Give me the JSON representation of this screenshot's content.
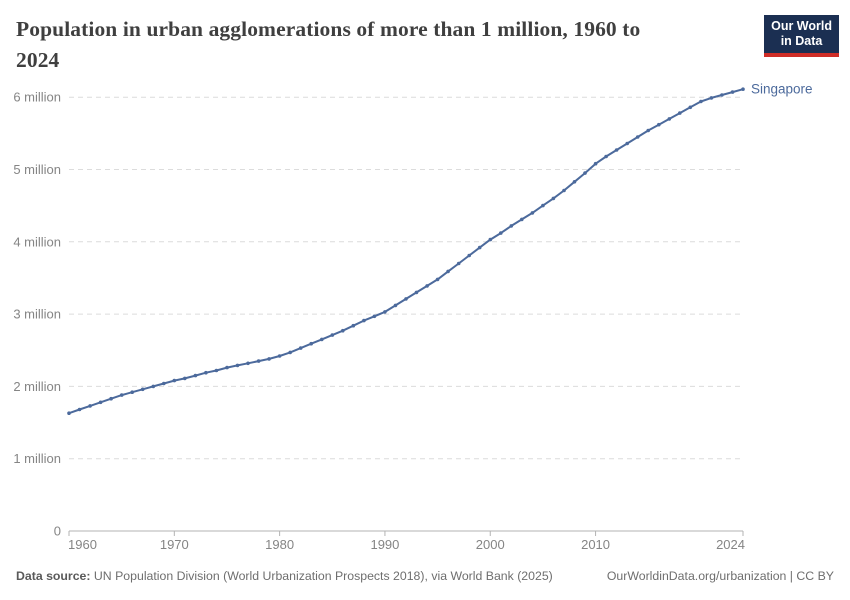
{
  "header": {
    "title_lines": [
      "Population in urban agglomerations of more than 1 million, 1960 to",
      "2024"
    ]
  },
  "logo": {
    "line1": "Our World",
    "line2": "in Data",
    "bg_color": "#1b2f52",
    "accent_color": "#cf2d27"
  },
  "chart_data": {
    "type": "line",
    "title": "Population in urban agglomerations of more than 1 million, 1960 to 2024",
    "xlabel": "",
    "ylabel": "",
    "xlim": [
      1960,
      2024
    ],
    "ylim": [
      0,
      6
    ],
    "grid": "horizontal-dashed",
    "legend_position": "line-end-label",
    "x_ticks": [
      {
        "year": 1960,
        "label": "1960",
        "align": "start"
      },
      {
        "year": 1970,
        "label": "1970",
        "align": "middle"
      },
      {
        "year": 1980,
        "label": "1980",
        "align": "middle"
      },
      {
        "year": 1990,
        "label": "1990",
        "align": "middle"
      },
      {
        "year": 2000,
        "label": "2000",
        "align": "middle"
      },
      {
        "year": 2010,
        "label": "2010",
        "align": "middle"
      },
      {
        "year": 2024,
        "label": "2024",
        "align": "end"
      }
    ],
    "y_ticks": [
      {
        "v": 0,
        "label": "0"
      },
      {
        "v": 1,
        "label": "1 million"
      },
      {
        "v": 2,
        "label": "2 million"
      },
      {
        "v": 3,
        "label": "3 million"
      },
      {
        "v": 4,
        "label": "4 million"
      },
      {
        "v": 5,
        "label": "5 million"
      },
      {
        "v": 6,
        "label": "6 million"
      }
    ],
    "x": [
      1960,
      1961,
      1962,
      1963,
      1964,
      1965,
      1966,
      1967,
      1968,
      1969,
      1970,
      1971,
      1972,
      1973,
      1974,
      1975,
      1976,
      1977,
      1978,
      1979,
      1980,
      1981,
      1982,
      1983,
      1984,
      1985,
      1986,
      1987,
      1988,
      1989,
      1990,
      1991,
      1992,
      1993,
      1994,
      1995,
      1996,
      1997,
      1998,
      1999,
      2000,
      2001,
      2002,
      2003,
      2004,
      2005,
      2006,
      2007,
      2008,
      2009,
      2010,
      2011,
      2012,
      2013,
      2014,
      2015,
      2016,
      2017,
      2018,
      2019,
      2020,
      2021,
      2022,
      2023,
      2024
    ],
    "series": [
      {
        "name": "Singapore",
        "color": "#4c6a9c",
        "unit": "million",
        "values": [
          1.63,
          1.68,
          1.73,
          1.78,
          1.83,
          1.88,
          1.92,
          1.96,
          2.0,
          2.04,
          2.08,
          2.11,
          2.15,
          2.19,
          2.22,
          2.26,
          2.29,
          2.32,
          2.35,
          2.38,
          2.42,
          2.47,
          2.53,
          2.59,
          2.65,
          2.71,
          2.77,
          2.84,
          2.91,
          2.97,
          3.03,
          3.12,
          3.21,
          3.3,
          3.39,
          3.48,
          3.59,
          3.7,
          3.81,
          3.92,
          4.03,
          4.12,
          4.22,
          4.31,
          4.4,
          4.5,
          4.6,
          4.71,
          4.83,
          4.95,
          5.08,
          5.18,
          5.27,
          5.36,
          5.45,
          5.54,
          5.62,
          5.7,
          5.78,
          5.86,
          5.94,
          5.99,
          6.03,
          6.07,
          6.11
        ]
      }
    ]
  },
  "footer": {
    "source_label": "Data source:",
    "source_text": " UN Population Division (World Urbanization Prospects 2018), via World Bank (2025)",
    "right_text": "OurWorldinData.org/urbanization | CC BY"
  },
  "style": {
    "gridline_color": "#dcdcdc",
    "axis_color": "#b3b3b3",
    "tick_label_color": "#858585"
  }
}
